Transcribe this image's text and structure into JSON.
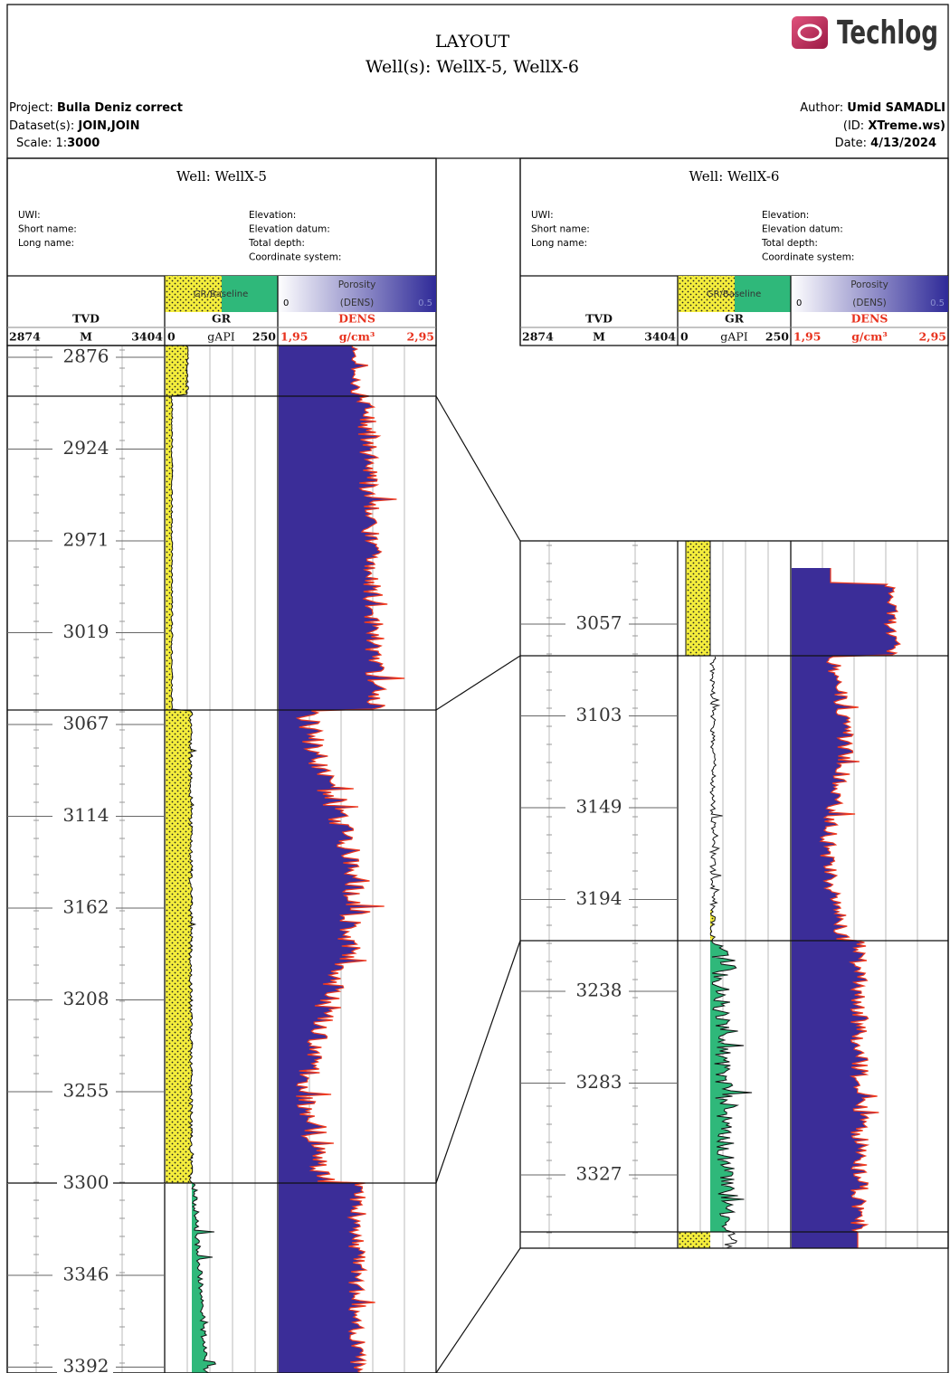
{
  "header": {
    "title": "LAYOUT",
    "subtitle": "Well(s): WellX-5, WellX-6",
    "logo": "Techlog",
    "project_label": "Project:",
    "project": "Bulla Deniz correct",
    "datasets_label": "Dataset(s):",
    "datasets": "JOIN,JOIN",
    "scale_label": "Scale: 1:",
    "scale": "3000",
    "author_label": "Author:",
    "author": "Umid SAMADLI",
    "id_label": "(ID:",
    "id": "XTreme.ws)",
    "date_label": "Date:",
    "date": "4/13/2024"
  },
  "wells": [
    {
      "title": "Well: WellX-5",
      "info_left": [
        "UWI:",
        "Short name:",
        "Long name:"
      ],
      "info_right": [
        "Elevation:",
        "Elevation datum:",
        "Total depth:",
        "Coordinate system:"
      ],
      "legend": {
        "gr": "GR/Baseline",
        "porosity": "Porosity",
        "por_min": "0",
        "por_name": "(DENS)",
        "por_max": "0.5"
      },
      "tracks": {
        "depth_name": "TVD",
        "depth_unit": "M",
        "depth_min": "2874",
        "depth_max": "3404",
        "gr_name": "GR",
        "gr_min": "0",
        "gr_unit": "gAPI",
        "gr_max": "250",
        "dens_name": "DENS",
        "dens_min": "1,95",
        "dens_unit": "g/cm³",
        "dens_max": "2,95"
      },
      "depth_labels": [
        "2876",
        "2924",
        "2971",
        "3019",
        "3067",
        "3114",
        "3162",
        "3208",
        "3255",
        "3300",
        "3346",
        "3392"
      ]
    },
    {
      "title": "Well: WellX-6",
      "info_left": [
        "UWI:",
        "Short name:",
        "Long name:"
      ],
      "info_right": [
        "Elevation:",
        "Elevation datum:",
        "Total depth:",
        "Coordinate system:"
      ],
      "legend": {
        "gr": "GR/Baseline",
        "porosity": "Porosity",
        "por_min": "0",
        "por_name": "(DENS)",
        "por_max": "0.5"
      },
      "tracks": {
        "depth_name": "TVD",
        "depth_unit": "M",
        "depth_min": "2874",
        "depth_max": "3404",
        "gr_name": "GR",
        "gr_min": "0",
        "gr_unit": "gAPI",
        "gr_max": "250",
        "dens_name": "DENS",
        "dens_min": "1,95",
        "dens_unit": "g/cm³",
        "dens_max": "2,95"
      },
      "depth_labels": [
        "3057",
        "3103",
        "3149",
        "3194",
        "3238",
        "3283",
        "3327"
      ]
    }
  ]
}
